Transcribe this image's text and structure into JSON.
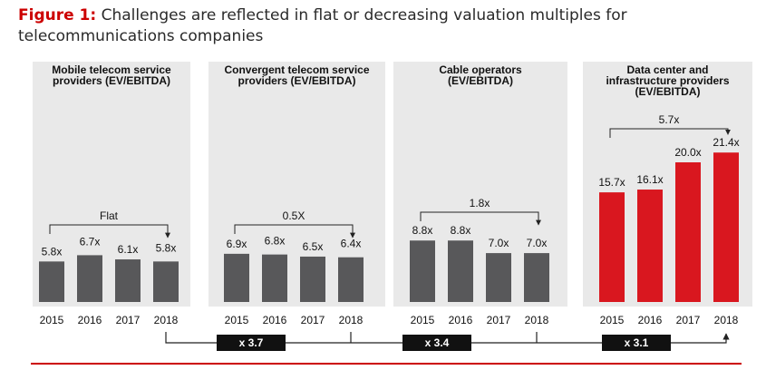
{
  "figure": {
    "label": "Figure 1:",
    "title": "Challenges are reflected in flat or decreasing valuation multiples for telecommunications companies"
  },
  "colors": {
    "gray_bar": "#58585a",
    "red_bar": "#d9171f",
    "panel_bg": "#e9e9e9",
    "accent": "#cc0000",
    "connector": "#222222"
  },
  "chart_data": [
    {
      "type": "bar",
      "panel_title": [
        "Mobile telecom service",
        "providers (EV/EBITDA)"
      ],
      "categories": [
        "2015",
        "2016",
        "2017",
        "2018"
      ],
      "values": [
        5.8,
        6.7,
        6.1,
        5.8
      ],
      "data_labels": [
        "5.8x",
        "6.7x",
        "6.1x",
        "5.8x"
      ],
      "bracket_label": "Flat",
      "bar_color": "#58585a"
    },
    {
      "type": "bar",
      "panel_title": [
        "Convergent telecom service",
        "providers (EV/EBITDA)"
      ],
      "categories": [
        "2015",
        "2016",
        "2017",
        "2018"
      ],
      "values": [
        6.9,
        6.8,
        6.5,
        6.4
      ],
      "data_labels": [
        "6.9x",
        "6.8x",
        "6.5x",
        "6.4x"
      ],
      "bracket_label": "0.5X",
      "bar_color": "#58585a"
    },
    {
      "type": "bar",
      "panel_title": [
        "Cable operators",
        "(EV/EBITDA)"
      ],
      "categories": [
        "2015",
        "2016",
        "2017",
        "2018"
      ],
      "values": [
        8.8,
        8.8,
        7.0,
        7.0
      ],
      "data_labels": [
        "8.8x",
        "8.8x",
        "7.0x",
        "7.0x"
      ],
      "bracket_label": "1.8x",
      "bar_color": "#58585a"
    },
    {
      "type": "bar",
      "panel_title": [
        "Data center and",
        "infrastructure providers",
        "(EV/EBITDA)"
      ],
      "categories": [
        "2015",
        "2016",
        "2017",
        "2018"
      ],
      "values": [
        15.7,
        16.1,
        20.0,
        21.4
      ],
      "data_labels": [
        "15.7x",
        "16.1x",
        "20.0x",
        "21.4x"
      ],
      "bracket_label": "5.7x",
      "bar_color": "#d9171f"
    }
  ],
  "comparisons": [
    "x 3.7",
    "x 3.4",
    "x 3.1"
  ]
}
